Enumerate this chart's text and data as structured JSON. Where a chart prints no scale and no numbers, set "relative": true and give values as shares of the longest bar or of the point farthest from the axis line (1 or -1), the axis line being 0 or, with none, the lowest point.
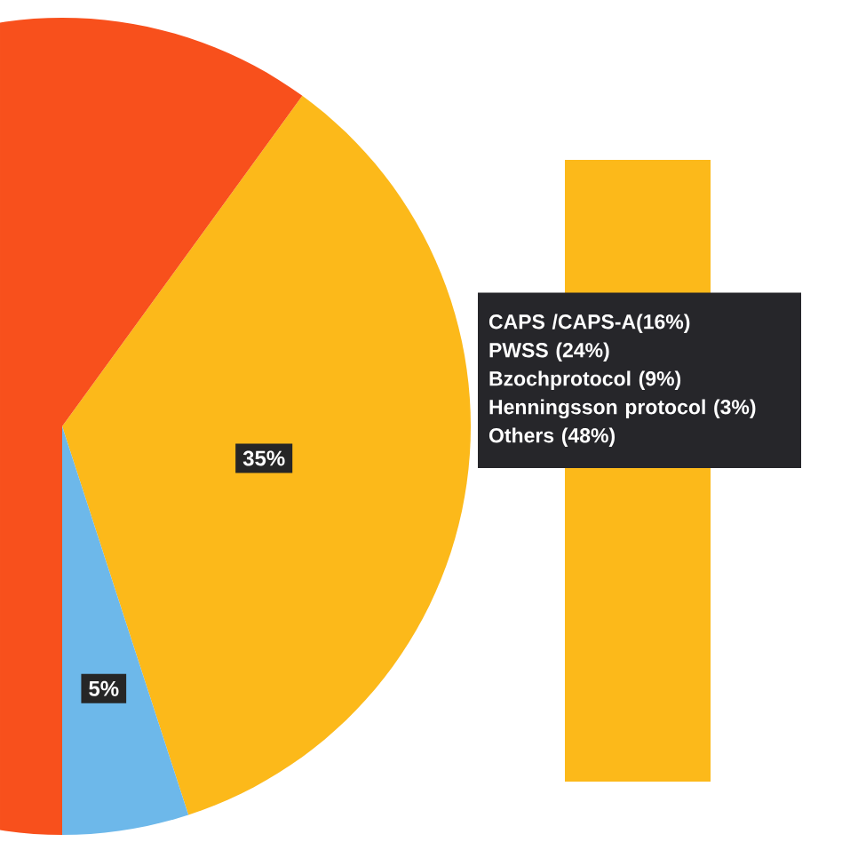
{
  "chart_data": [
    {
      "type": "pie",
      "categories": [
        null,
        null,
        null
      ],
      "values": [
        35,
        5,
        60
      ],
      "colors": [
        "#fcb91a",
        "#6db8ea",
        "#f8501c"
      ],
      "value_labels": [
        "35%",
        "5%",
        null
      ]
    },
    {
      "type": "bar",
      "categories": [
        null
      ],
      "values": [
        1
      ],
      "relative": true,
      "color": "#fcb91a",
      "annotations": [
        "CAPS /CAPS-A(16%)",
        "PWSS (24%)",
        "Bzochprotocol (9%)",
        "Henningsson protocol (3%)",
        "Others (48%)"
      ]
    }
  ]
}
